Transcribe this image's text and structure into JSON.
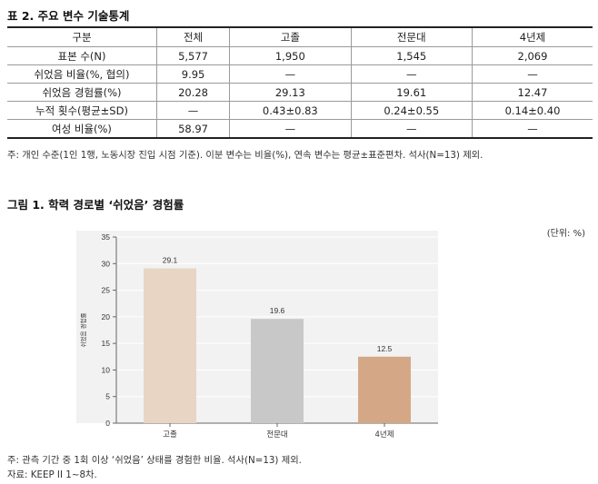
{
  "table": {
    "title": "표 2. 주요 변수 기술통계",
    "headers": [
      "구분",
      "전체",
      "고졸",
      "전문대",
      "4년제"
    ],
    "rows": [
      {
        "label": "표본 수(N)",
        "cells": [
          "5,577",
          "1,950",
          "1,545",
          "2,069"
        ]
      },
      {
        "label": "쉬었음 비율(%, 협의)",
        "cells": [
          "9.95",
          "—",
          "—",
          "—"
        ]
      },
      {
        "label": "쉬었음 경험률(%)",
        "cells": [
          "20.28",
          "29.13",
          "19.61",
          "12.47"
        ]
      },
      {
        "label": "누적 횟수(평균±SD)",
        "cells": [
          "—",
          "0.43±0.83",
          "0.24±0.55",
          "0.14±0.40"
        ]
      },
      {
        "label": "여성 비율(%)",
        "cells": [
          "58.97",
          "—",
          "—",
          "—"
        ]
      }
    ],
    "note": "주: 개인 수준(1인 1행, 노동시장 진입 시점 기준). 이분 변수는 비율(%), 연속 변수는 평균±표준편차. 석사(N=13) 제외."
  },
  "figure": {
    "title": "그림 1. 학력 경로별 ‘쉬었음’ 경험률",
    "unit": "(단위: %)",
    "note": "주: 관측 기간 중 1회 이상 ‘쉬었음’ 상태를 경험한 비율. 석사(N=13) 제외.",
    "source": "자료: KEEP II 1~8차."
  },
  "chart_data": {
    "type": "bar",
    "categories": [
      "고졸",
      "전문대",
      "4년제"
    ],
    "values": [
      29.1,
      19.6,
      12.5
    ],
    "data_labels": [
      "29.1",
      "19.6",
      "12.5"
    ],
    "ylabel": "쉬었음 경험률",
    "ylim": [
      0,
      35
    ],
    "yticks": [
      0,
      5,
      10,
      15,
      20,
      25,
      30,
      35
    ],
    "grid": true,
    "bar_colors": [
      "#e8d5c4",
      "#c8c8c8",
      "#d4a886"
    ]
  }
}
